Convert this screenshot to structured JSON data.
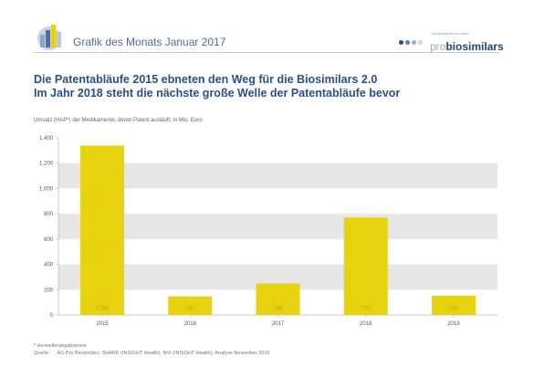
{
  "header": {
    "section_title": "Grafik des Monats Januar 2017",
    "brand_tagline": "Arbeitsgemeinschaft",
    "brand_pro": "pro",
    "brand_bio": "biosimilars"
  },
  "headline": {
    "line1": "Die Patentabläufe 2015 ebneten den Weg für die Biosimilars 2.0",
    "line2": "Im Jahr 2018 steht die nächste große Welle der Patentabläufe bevor"
  },
  "chart_data": {
    "type": "bar",
    "title": "Umsatz (HAP*) der Medikamente, deren Patent ausläuft, in Mio. Euro",
    "categories": [
      "2015",
      "2016",
      "2017",
      "2018",
      "2019"
    ],
    "values": [
      1339,
      147,
      248,
      771,
      153
    ],
    "value_labels": [
      "1.339",
      "147",
      "248",
      "771",
      "153"
    ],
    "ylim": [
      0,
      1400
    ],
    "yticks": [
      0,
      200,
      400,
      600,
      800,
      1000,
      1200,
      1400
    ],
    "ytick_labels": [
      "0",
      "200",
      "400",
      "600",
      "800",
      "1.000",
      "1.200",
      "1.400"
    ],
    "bar_color": "#e8d20f",
    "band_color": "#e6e6e6",
    "grid": true
  },
  "footnote": {
    "line1": "* Herstellerabgabepreis",
    "source_label": "Quelle:",
    "source_text": "AG Pro Biosimilars; SHARK (INSIGHT Health); NVI (INSIGHT Health); Analyse November 2016"
  }
}
